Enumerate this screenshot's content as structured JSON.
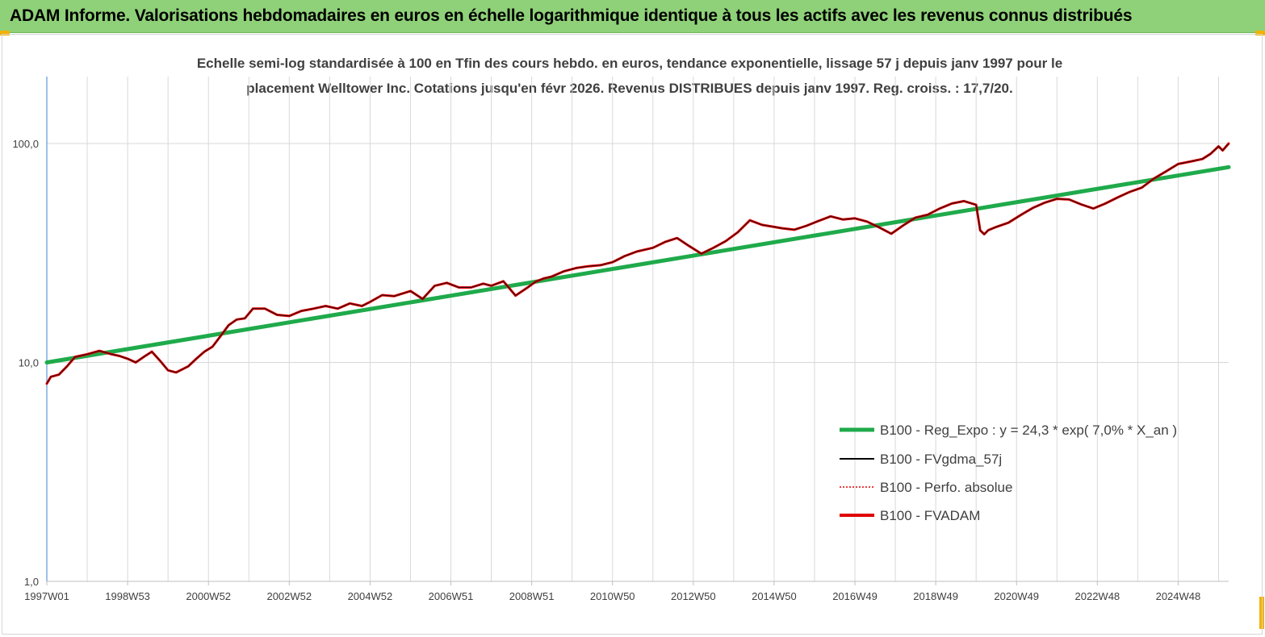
{
  "header": {
    "title": "ADAM Informe. Valorisations hebdomadaires en euros en échelle logarithmique identique à tous les actifs avec les revenus connus distribués",
    "background": "#8fd178"
  },
  "chart_data": {
    "type": "line",
    "title_line1": "Echelle semi-log standardisée à 100 en Tfin des cours hebdo. en euros, tendance exponentielle, lissage 57 j depuis janv 1997 pour le",
    "title_line2": "placement Welltower Inc. Cotations jusqu'en févr 2026. Revenus DISTRIBUES depuis janv 1997. Reg. croiss. : 17,7/20.",
    "y_scale": "log",
    "ylim": [
      1,
      180
    ],
    "y_tick_values": [
      1,
      10,
      100
    ],
    "y_tick_labels": [
      "1,0",
      "10,0",
      "100,0"
    ],
    "xlim": [
      1997.0,
      2026.25
    ],
    "x_tick_values": [
      1997.0,
      1999.0,
      2001.0,
      2003.0,
      2005.0,
      2007.0,
      2009.0,
      2011.0,
      2013.0,
      2015.0,
      2017.0,
      2019.0,
      2021.0,
      2023.0,
      2025.0
    ],
    "x_tick_labels": [
      "1997W01",
      "1998W53",
      "2000W52",
      "2002W52",
      "2004W52",
      "2006W51",
      "2008W51",
      "2010W50",
      "2012W50",
      "2014W50",
      "2016W49",
      "2018W49",
      "2020W49",
      "2022W48",
      "2024W48"
    ],
    "grid": true,
    "legend_position": "lower-right",
    "series": [
      {
        "name": "B100 - Reg_Expo : y = 24,3 * exp( 7,0% * X_an )",
        "color": "#1faa4b",
        "style": "thick",
        "x": [
          1997.0,
          2026.25
        ],
        "y": [
          10.0,
          78.0
        ]
      },
      {
        "name": "B100 - FVgdma_57j",
        "color": "#000000",
        "style": "thin"
      },
      {
        "name": "B100 - Perfo. absolue",
        "color": "#e00000",
        "style": "dotted"
      },
      {
        "name": "B100 - FVADAM",
        "color": "#e00000",
        "style": "thick",
        "x": [
          1997.0,
          1997.1,
          1997.3,
          1997.5,
          1997.7,
          1998.0,
          1998.3,
          1998.6,
          1998.8,
          1999.0,
          1999.2,
          1999.4,
          1999.6,
          1999.8,
          2000.0,
          2000.2,
          2000.5,
          2000.7,
          2000.9,
          2001.1,
          2001.3,
          2001.5,
          2001.7,
          2001.9,
          2002.1,
          2002.4,
          2002.7,
          2003.0,
          2003.3,
          2003.6,
          2003.9,
          2004.2,
          2004.5,
          2004.8,
          2005.0,
          2005.3,
          2005.6,
          2006.0,
          2006.3,
          2006.6,
          2006.9,
          2007.2,
          2007.5,
          2007.8,
          2008.0,
          2008.3,
          2008.6,
          2008.9,
          2009.1,
          2009.3,
          2009.5,
          2009.8,
          2010.1,
          2010.4,
          2010.7,
          2011.0,
          2011.3,
          2011.6,
          2012.0,
          2012.3,
          2012.6,
          2012.9,
          2013.2,
          2013.5,
          2013.8,
          2014.1,
          2014.4,
          2014.7,
          2015.0,
          2015.2,
          2015.5,
          2015.8,
          2016.1,
          2016.4,
          2016.7,
          2017.0,
          2017.3,
          2017.6,
          2017.9,
          2018.2,
          2018.5,
          2018.8,
          2019.1,
          2019.4,
          2019.7,
          2020.0,
          2020.1,
          2020.2,
          2020.3,
          2020.5,
          2020.8,
          2021.1,
          2021.4,
          2021.7,
          2022.0,
          2022.3,
          2022.6,
          2022.9,
          2023.2,
          2023.5,
          2023.8,
          2024.1,
          2024.4,
          2024.7,
          2025.0,
          2025.3,
          2025.6,
          2025.8,
          2026.0,
          2026.1,
          2026.25
        ],
        "y": [
          8.0,
          8.6,
          8.8,
          9.6,
          10.6,
          10.9,
          11.3,
          10.9,
          10.7,
          10.4,
          10.0,
          10.6,
          11.2,
          10.2,
          9.2,
          9.0,
          9.6,
          10.4,
          11.2,
          11.8,
          13.2,
          14.8,
          15.7,
          15.9,
          17.6,
          17.6,
          16.5,
          16.3,
          17.2,
          17.6,
          18.1,
          17.6,
          18.6,
          18.1,
          18.9,
          20.3,
          20.1,
          21.2,
          19.5,
          22.4,
          23.1,
          22.0,
          22.0,
          22.9,
          22.4,
          23.5,
          20.2,
          22.0,
          23.4,
          24.2,
          24.7,
          26.1,
          27.0,
          27.5,
          27.8,
          28.7,
          30.6,
          32.1,
          33.4,
          35.5,
          37.0,
          34.0,
          31.4,
          33.4,
          35.8,
          39.3,
          44.6,
          42.5,
          41.6,
          41.0,
          40.4,
          42.1,
          44.3,
          46.5,
          45.0,
          45.5,
          44.0,
          41.4,
          38.7,
          42.3,
          45.9,
          47.3,
          50.5,
          53.2,
          54.6,
          52.5,
          40.1,
          38.5,
          40.2,
          41.6,
          43.5,
          47.1,
          50.8,
          53.7,
          55.9,
          55.5,
          52.7,
          50.5,
          53.2,
          56.7,
          60.1,
          62.9,
          69.2,
          74.6,
          80.6,
          82.7,
          85.0,
          89.7,
          97.1,
          93.0,
          100.0
        ]
      }
    ]
  }
}
